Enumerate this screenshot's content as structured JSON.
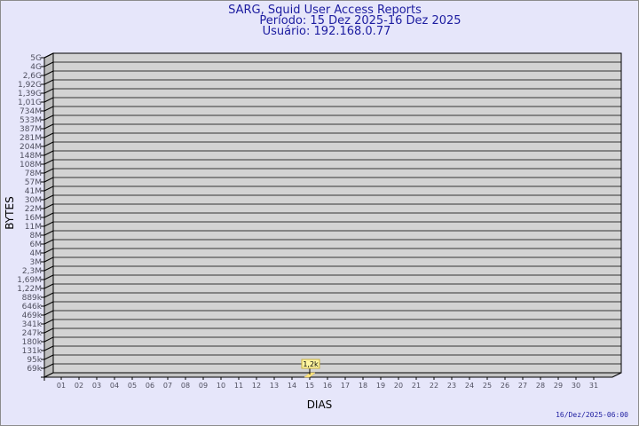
{
  "chart_data": {
    "type": "bar",
    "title": "SARG, Squid User Access Reports",
    "subtitle_period": "Período: 15 Dez 2025-16 Dez 2025",
    "subtitle_user": "Usuário: 192.168.0.77",
    "xlabel": "DIAS",
    "ylabel": "BYTES",
    "y_scale": "log",
    "grid": true,
    "x_tick_labels": [
      "01",
      "02",
      "03",
      "04",
      "05",
      "06",
      "07",
      "08",
      "09",
      "10",
      "11",
      "12",
      "13",
      "14",
      "15",
      "16",
      "17",
      "18",
      "19",
      "20",
      "21",
      "22",
      "23",
      "24",
      "25",
      "26",
      "27",
      "28",
      "29",
      "30",
      "31"
    ],
    "y_tick_labels": [
      "5G",
      "4G",
      "2,6G",
      "1,92G",
      "1,39G",
      "1,01G",
      "734M",
      "533M",
      "387M",
      "281M",
      "204M",
      "148M",
      "108M",
      "78M",
      "57M",
      "41M",
      "30M",
      "22M",
      "16M",
      "11M",
      "8M",
      "6M",
      "4M",
      "3M",
      "2,3M",
      "1,69M",
      "1,22M",
      "889k",
      "646k",
      "469k",
      "341k",
      "247k",
      "180k",
      "131k",
      "95k",
      "69k"
    ],
    "series": [
      {
        "categories": [
          "15"
        ],
        "values": [
          1200
        ],
        "data_labels": [
          "1,2k"
        ]
      }
    ],
    "colors": {
      "background": "#e6e6fa",
      "plot": "#d3d3d3",
      "bar": "#ffe680",
      "title": "#1c1ca0"
    }
  },
  "footer_timestamp": "16/Dez/2025-06:00"
}
